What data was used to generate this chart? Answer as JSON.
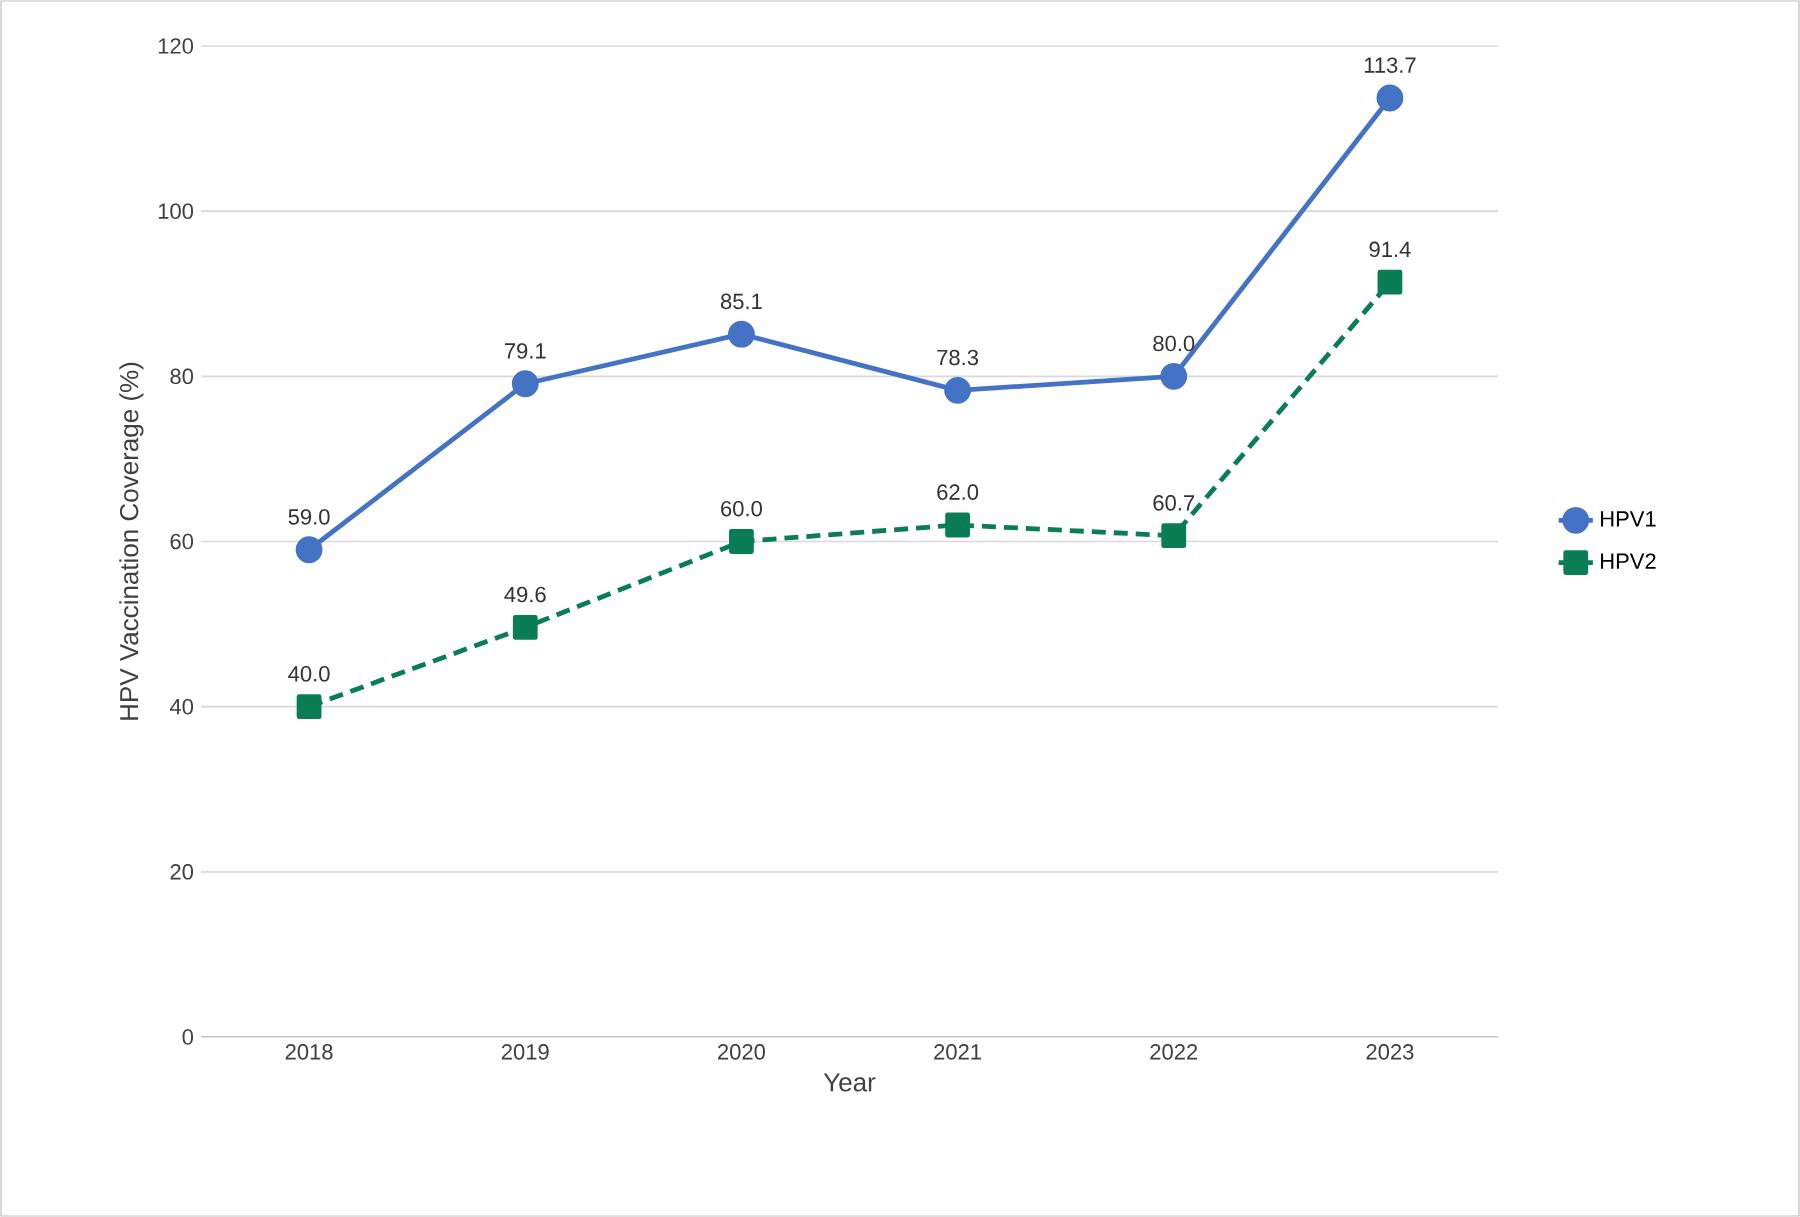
{
  "chart_data": {
    "type": "line",
    "xlabel": "Year",
    "ylabel": "HPV Vaccination Coverage (%)",
    "categories": [
      "2018",
      "2019",
      "2020",
      "2021",
      "2022",
      "2023"
    ],
    "series": [
      {
        "name": "HPV1",
        "color": "#4472c4",
        "marker": "circle",
        "line_style": "solid",
        "values": [
          59.0,
          79.1,
          85.1,
          78.3,
          80.0,
          113.7
        ],
        "value_labels": [
          "59.0",
          "79.1",
          "85.1",
          "78.3",
          "80.0",
          "113.7"
        ]
      },
      {
        "name": "HPV2",
        "color": "#0a7d55",
        "marker": "square",
        "line_style": "dashed",
        "values": [
          40.0,
          49.6,
          60.0,
          62.0,
          60.7,
          91.4
        ],
        "value_labels": [
          "40.0",
          "49.6",
          "60.0",
          "62.0",
          "60.7",
          "91.4"
        ]
      }
    ],
    "ylim": [
      0,
      120
    ],
    "yticks": [
      0,
      20,
      40,
      60,
      80,
      100,
      120
    ],
    "grid": "y",
    "legend": "right"
  }
}
